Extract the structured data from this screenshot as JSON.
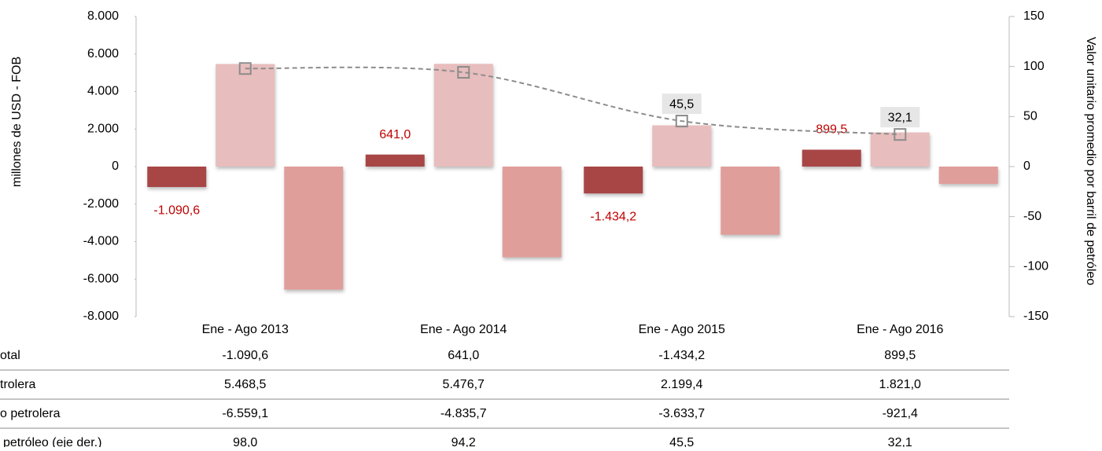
{
  "chart_data": {
    "type": "bar-line-table",
    "y_label": "millones de USD - FOB",
    "y2_label": "Valor unitario promedio por barril de petróleo",
    "categories": [
      "Ene - Ago  2013",
      "Ene - Ago  2014",
      "Ene - Ago  2015",
      "Ene - Ago  2016"
    ],
    "ylim": [
      -8000,
      8000
    ],
    "yticks": [
      {
        "value": -8000,
        "label": "-8.000"
      },
      {
        "value": -6000,
        "label": "-6.000"
      },
      {
        "value": -4000,
        "label": "-4.000"
      },
      {
        "value": -2000,
        "label": "-2.000"
      },
      0,
      {
        "value": 2000,
        "label": "2.000"
      },
      {
        "value": 4000,
        "label": "4.000"
      },
      {
        "value": 6000,
        "label": "6.000"
      },
      {
        "value": 8000,
        "label": "8.000"
      }
    ],
    "y2lim": [
      -150,
      150
    ],
    "y2ticks": [
      -150,
      -100,
      -50,
      0,
      50,
      100,
      150
    ],
    "series": [
      {
        "name": "otal",
        "color": "#a84646",
        "values": [
          -1090.6,
          641.0,
          -1434.2,
          899.5
        ],
        "value_labels": [
          "-1.090,6",
          "641,0",
          "-1.434,2",
          "899,5"
        ]
      },
      {
        "name": "trolera",
        "color": "#e8bdbd",
        "values": [
          5468.5,
          5476.7,
          2199.4,
          1821.0
        ],
        "value_labels": [
          "5.468,5",
          "5.476,7",
          "2.199,4",
          "1.821,0"
        ]
      },
      {
        "name": "o petrolera",
        "color": "#e09e9b",
        "values": [
          -6559.1,
          -4835.7,
          -3633.7,
          -921.4
        ],
        "value_labels": [
          "-6.559,1",
          "-4.835,7",
          "-3.633,7",
          "-921,4"
        ]
      },
      {
        "name": "petróleo (eje der.)",
        "color": "#8c8c8c",
        "axis": "y2",
        "values": [
          98.0,
          94.2,
          45.5,
          32.1
        ],
        "value_labels": [
          "98,0",
          "94,2",
          "45,5",
          "32,1"
        ]
      }
    ]
  }
}
